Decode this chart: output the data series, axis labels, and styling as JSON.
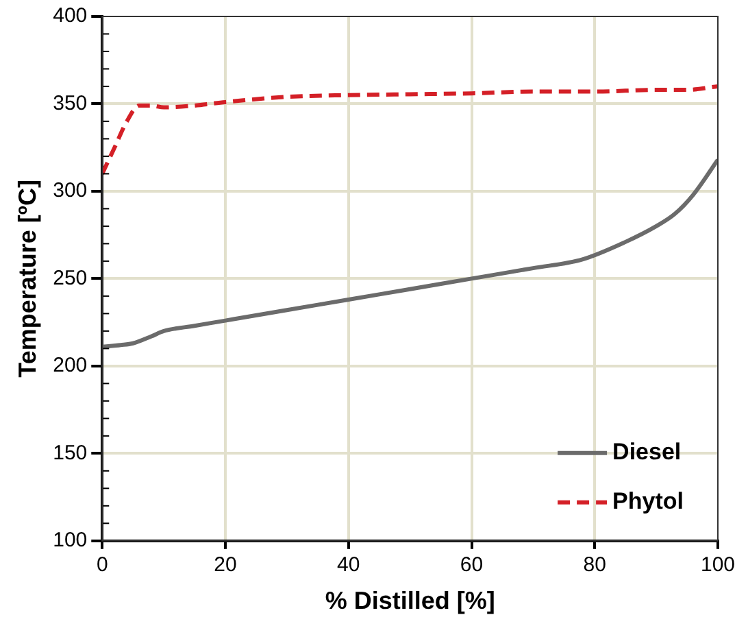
{
  "chart_data": {
    "type": "line",
    "xlabel": "% Distilled [%]",
    "ylabel": "Temperature [ºC]",
    "xlim": [
      0,
      100
    ],
    "xticks": [
      0,
      20,
      40,
      60,
      80,
      100
    ],
    "ylim": [
      100,
      400
    ],
    "yticks": [
      100,
      150,
      200,
      250,
      300,
      350,
      400
    ],
    "grid": true,
    "legend": "bottom right",
    "marker": "none",
    "series": [
      {
        "name": "Diesel",
        "color": "#6b6b6b",
        "line_style": "solid",
        "x": [
          0,
          3,
          5,
          8,
          10,
          15,
          20,
          30,
          40,
          50,
          60,
          70,
          78,
          85,
          90,
          93,
          96,
          100
        ],
        "values": [
          211,
          212,
          213,
          217,
          220,
          223,
          226,
          232,
          238,
          244,
          250,
          256,
          261,
          271,
          280,
          287,
          298,
          318
        ]
      },
      {
        "name": "Phytol",
        "color": "#d42027",
        "line_style": "dashed",
        "x": [
          0,
          2,
          4,
          6,
          8,
          10,
          15,
          20,
          30,
          40,
          50,
          60,
          70,
          80,
          90,
          95,
          100
        ],
        "values": [
          310,
          325,
          340,
          349,
          349,
          348,
          349,
          351,
          354,
          355,
          355.5,
          356,
          357,
          357,
          358,
          358,
          360
        ]
      }
    ]
  }
}
